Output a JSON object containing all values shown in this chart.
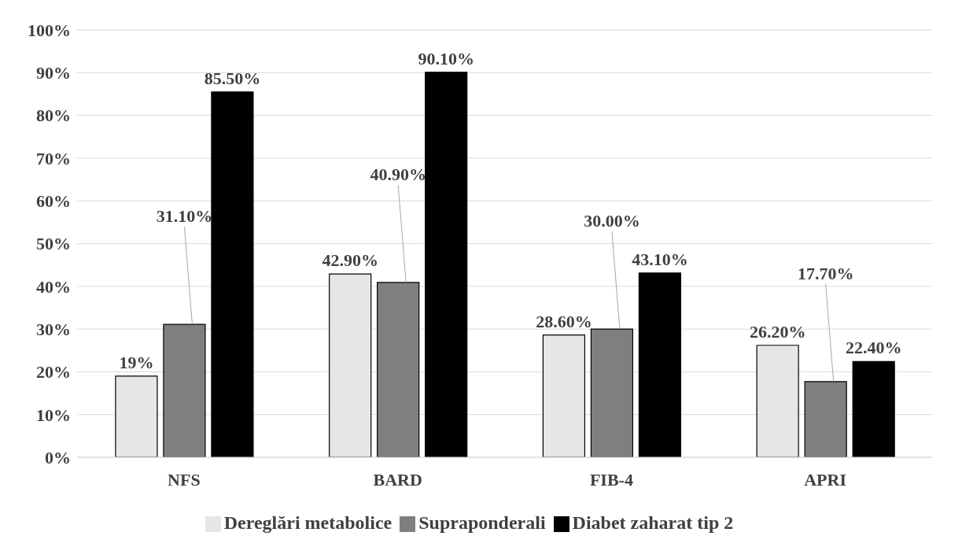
{
  "chart_data": {
    "type": "bar",
    "categories": [
      "NFS",
      "BARD",
      "FIB-4",
      "APRI"
    ],
    "series": [
      {
        "name": "Dereglări metabolice",
        "color": "#e7e6e6",
        "values": [
          19,
          42.9,
          28.6,
          26.2
        ],
        "value_labels": [
          "19%",
          "42.90%",
          "28.60%",
          "26.20%"
        ]
      },
      {
        "name": "Supraponderali",
        "color": "#7f7f7f",
        "values": [
          31.1,
          40.9,
          30.0,
          17.7
        ],
        "value_labels": [
          "31.10%",
          "40.90%",
          "30.00%",
          "17.70%"
        ]
      },
      {
        "name": "Diabet zaharat tip 2",
        "color": "#000000",
        "values": [
          85.5,
          90.1,
          43.1,
          22.4
        ],
        "value_labels": [
          "85.50%",
          "90.10%",
          "43.10%",
          "22.40%"
        ]
      }
    ],
    "ylim": [
      0,
      100
    ],
    "yticks": [
      {
        "value": 0,
        "label": "0%"
      },
      {
        "value": 10,
        "label": "10%"
      },
      {
        "value": 20,
        "label": "20%"
      },
      {
        "value": 30,
        "label": "30%"
      },
      {
        "value": 40,
        "label": "40%"
      },
      {
        "value": 50,
        "label": "50%"
      },
      {
        "value": 60,
        "label": "60%"
      },
      {
        "value": 70,
        "label": "70%"
      },
      {
        "value": 80,
        "label": "80%"
      },
      {
        "value": 90,
        "label": "90%"
      },
      {
        "value": 100,
        "label": "100%"
      }
    ],
    "grid": "y",
    "legend": "bottom"
  }
}
